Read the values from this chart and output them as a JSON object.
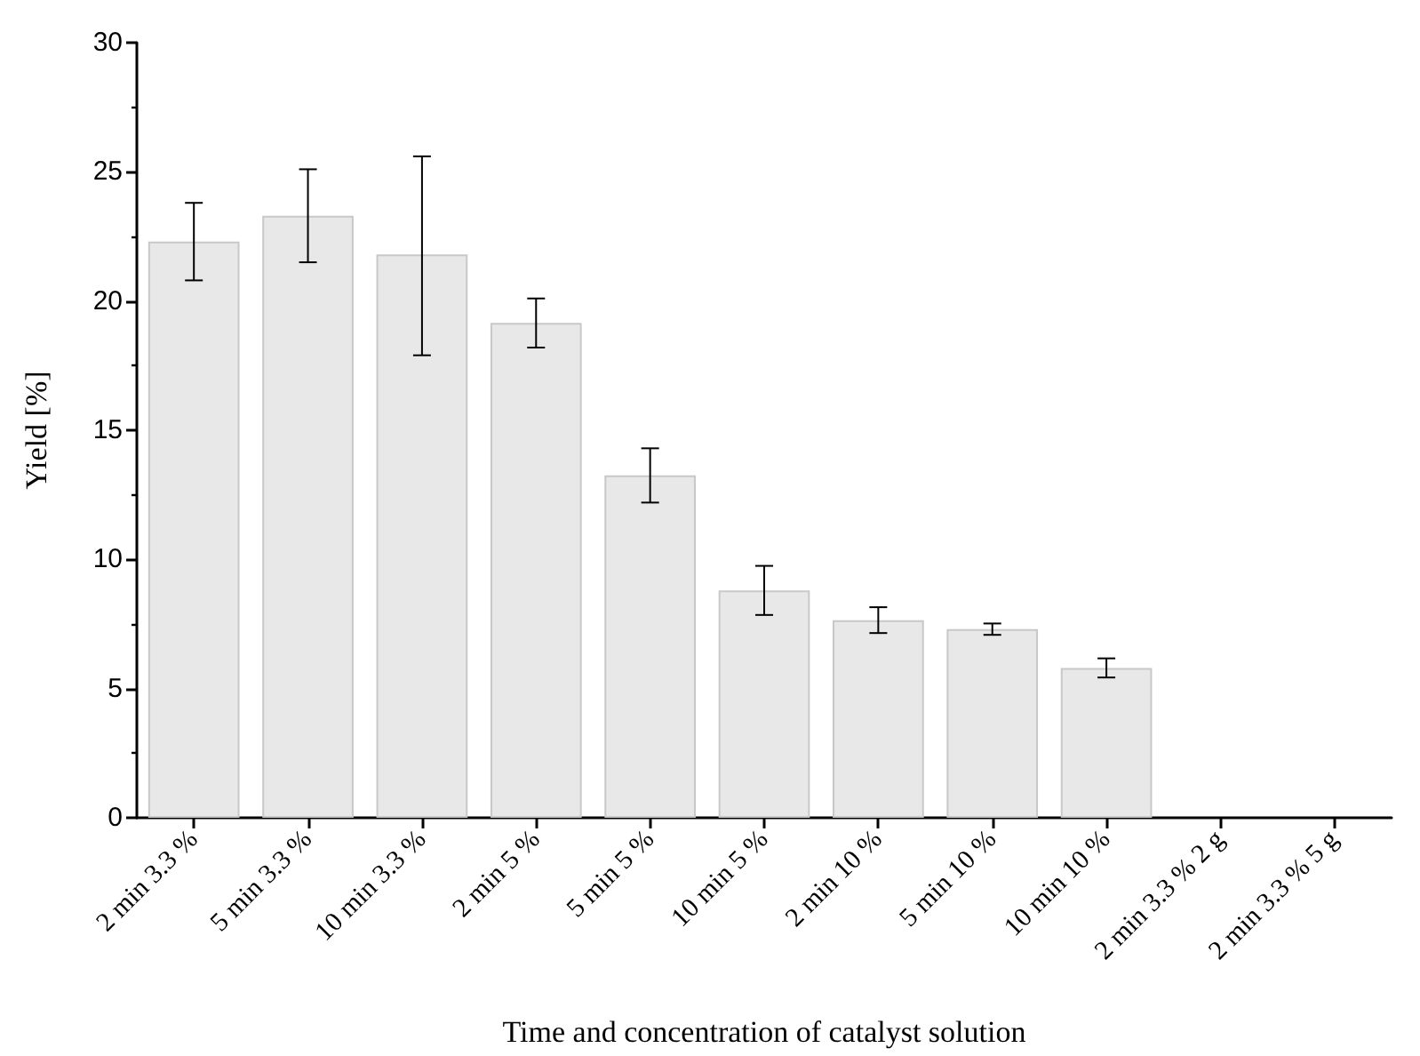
{
  "chart_data": {
    "type": "bar",
    "xlabel": "Time and concentration of catalyst solution",
    "ylabel": "Yield [%]",
    "categories": [
      "2 min 3.3 %",
      "5 min 3.3 %",
      "10 min 3.3 %",
      "2 min 5 %",
      "5 min 5 %",
      "10 min 5 %",
      "2 min 10 %",
      "5 min 10 %",
      "10 min 10 %",
      "2 min 3.3 % 2 g",
      "2 min 3.3 % 5 g"
    ],
    "values": [
      22.3,
      23.3,
      21.8,
      19.15,
      13.25,
      8.8,
      7.65,
      7.3,
      5.8,
      0,
      0
    ],
    "errors": [
      1.5,
      1.8,
      [
        17.9,
        25.6
      ],
      0.95,
      1.05,
      0.95,
      0.5,
      0.22,
      0.37,
      null,
      null
    ],
    "color": "#e8e8e8",
    "ylim": [
      0,
      30
    ],
    "yticks": [
      0,
      5,
      10,
      15,
      20,
      25,
      30
    ],
    "grid": false
  }
}
